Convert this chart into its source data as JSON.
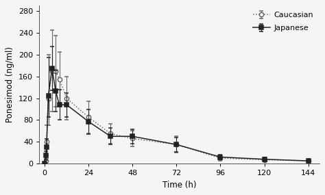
{
  "title": "",
  "xlabel": "Time (h)",
  "ylabel": "Ponesimod (ng/ml)",
  "xlim": [
    -3,
    150
  ],
  "ylim": [
    0,
    290
  ],
  "yticks": [
    0,
    40,
    80,
    120,
    160,
    200,
    240,
    280
  ],
  "xticks": [
    0,
    24,
    48,
    72,
    96,
    120,
    144
  ],
  "caucasian_x": [
    0,
    0.5,
    1,
    2,
    4,
    6,
    8,
    12,
    24,
    36,
    48,
    72,
    96,
    120,
    144
  ],
  "caucasian_y": [
    0,
    5,
    40,
    120,
    170,
    170,
    155,
    120,
    85,
    55,
    46,
    35,
    10,
    7,
    5
  ],
  "caucasian_err_lo": [
    0,
    4,
    30,
    50,
    75,
    65,
    50,
    40,
    30,
    18,
    15,
    15,
    5,
    3,
    2
  ],
  "caucasian_err_hi": [
    0,
    4,
    30,
    80,
    75,
    65,
    50,
    40,
    30,
    18,
    15,
    15,
    5,
    3,
    2
  ],
  "japanese_x": [
    0,
    0.5,
    1,
    2,
    4,
    6,
    8,
    12,
    24,
    36,
    48,
    72,
    96,
    120,
    144
  ],
  "japanese_y": [
    0,
    15,
    30,
    125,
    175,
    133,
    108,
    108,
    77,
    50,
    50,
    35,
    12,
    8,
    5
  ],
  "japanese_err_lo": [
    0,
    8,
    15,
    40,
    40,
    38,
    28,
    22,
    23,
    15,
    13,
    13,
    4,
    4,
    2
  ],
  "japanese_err_hi": [
    0,
    8,
    15,
    70,
    40,
    38,
    28,
    22,
    23,
    15,
    13,
    13,
    4,
    4,
    2
  ],
  "color_caucasian": "#666666",
  "color_japanese": "#222222",
  "background_color": "#f5f5f5",
  "legend_labels": [
    "Caucasian",
    "Japanese"
  ]
}
